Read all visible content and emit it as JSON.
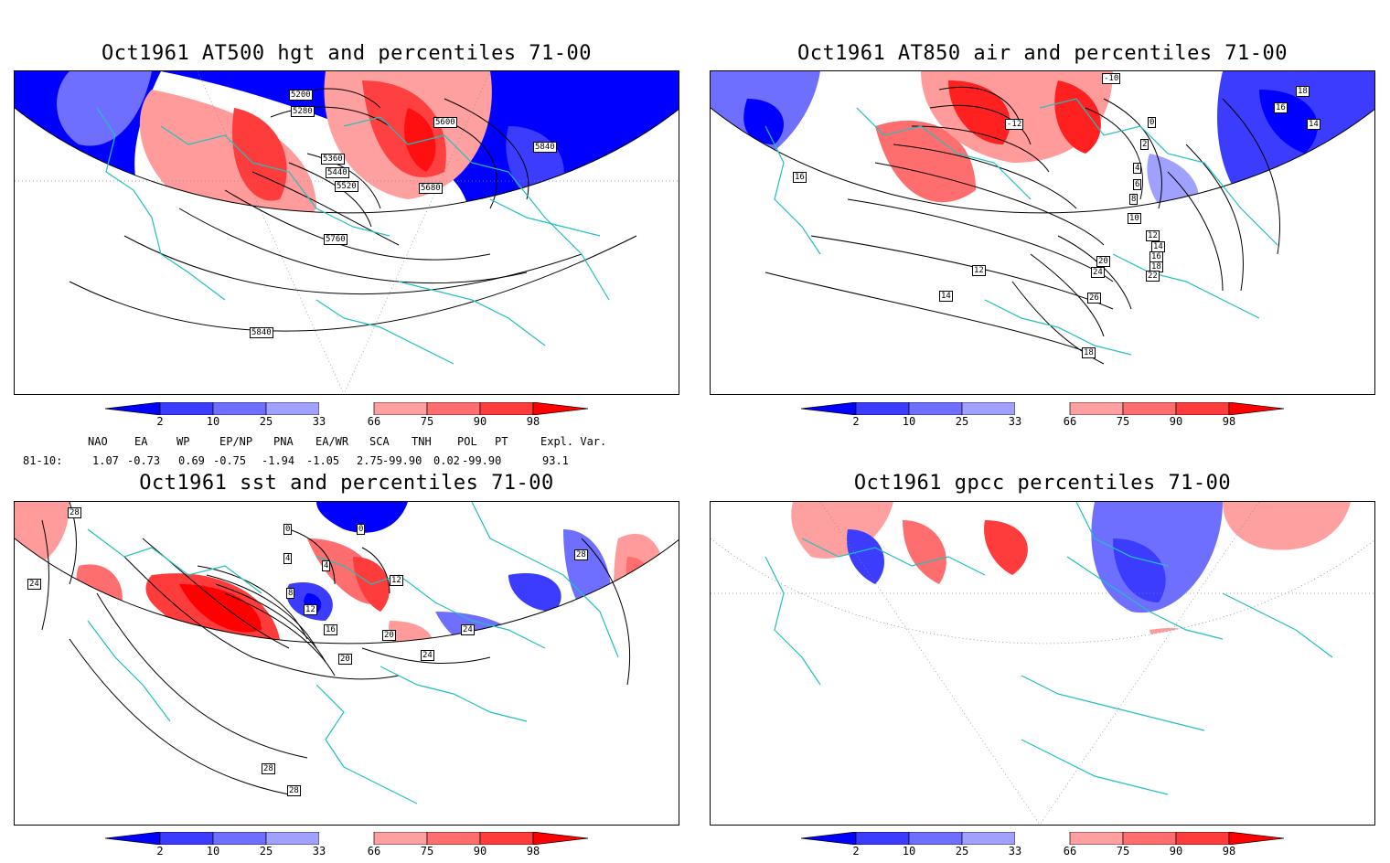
{
  "panels": [
    {
      "id": "hgt",
      "title": "Oct1961 AT500 hgt and percentiles 71-00",
      "contour_labels": [
        "5200",
        "5280",
        "5360",
        "5440",
        "5520",
        "5600",
        "5680",
        "5760",
        "5840",
        "5840"
      ]
    },
    {
      "id": "air",
      "title": "Oct1961 AT850 air and percentiles 71-00",
      "contour_labels": [
        "-10",
        "-12",
        "0",
        "2",
        "4",
        "6",
        "8",
        "10",
        "12",
        "14",
        "16",
        "18",
        "20",
        "22",
        "24",
        "26",
        "12",
        "14",
        "16",
        "18",
        "14",
        "16",
        "18"
      ]
    },
    {
      "id": "sst",
      "title": "Oct1961 sst and percentiles 71-00",
      "contour_labels": [
        "28",
        "24",
        "0",
        "0",
        "4",
        "4",
        "8",
        "12",
        "12",
        "16",
        "20",
        "20",
        "24",
        "24",
        "28",
        "28",
        "28"
      ]
    },
    {
      "id": "gpcc",
      "title": "Oct1961 gpcc percentiles 71-00",
      "contour_labels": []
    }
  ],
  "colorbar": {
    "ticks": [
      "2",
      "10",
      "25",
      "33",
      "66",
      "75",
      "90",
      "98"
    ],
    "colors": [
      "#0000ff",
      "#3c3cff",
      "#6e6eff",
      "#a0a0ff",
      "#ffffff",
      "#ffa0a0",
      "#ff6e6e",
      "#ff3c3c",
      "#ff0000"
    ]
  },
  "indices": {
    "names": [
      "NAO",
      "EA",
      "WP",
      "EP/NP",
      "PNA",
      "EA/WR",
      "SCA",
      "TNH",
      "POL",
      "PT",
      "Expl. Var."
    ],
    "row_label": "81-10:",
    "values": [
      "1.07",
      "-0.73",
      "0.69",
      "-0.75",
      "-1.94",
      "-1.05",
      "2.75",
      "-99.90",
      "0.02",
      "-99.90",
      "93.1"
    ]
  },
  "colors": {
    "coast": "#20c0c0",
    "frame": "#000000"
  }
}
